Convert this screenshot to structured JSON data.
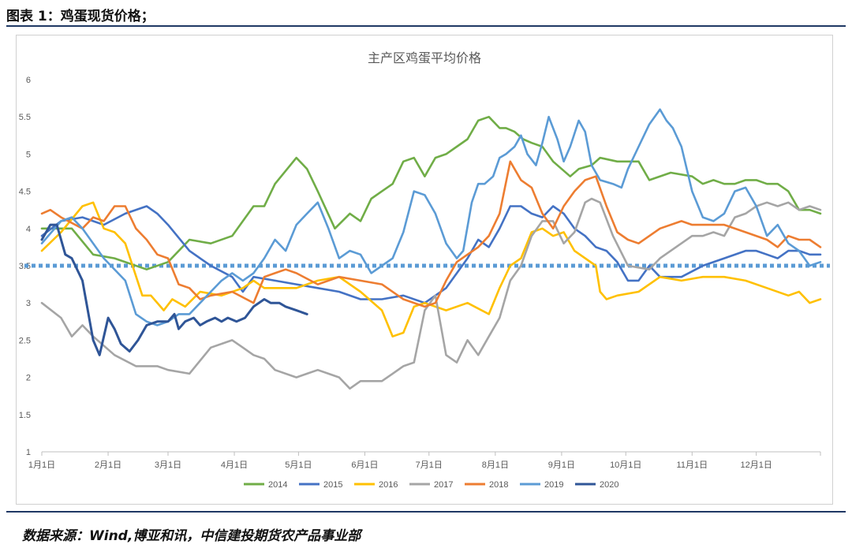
{
  "figure_caption": "图表 1：鸡蛋现货价格；",
  "source_note": "数据来源：Wind,博亚和讯，中信建投期货农产品事业部",
  "chart_data": {
    "type": "line",
    "title": "主产区鸡蛋平均价格",
    "xlabel": "",
    "ylabel": "",
    "ylim": [
      1,
      6
    ],
    "yticks": [
      "1",
      "1.5",
      "2",
      "2.5",
      "3",
      "3.5",
      "4",
      "4.5",
      "5",
      "5.5",
      "6"
    ],
    "xticks": [
      "1月1日",
      "2月1日",
      "3月1日",
      "4月1日",
      "5月1日",
      "6月1日",
      "7月1日",
      "8月1日",
      "9月1日",
      "10月1日",
      "11月1日",
      "12月1日"
    ],
    "x_day_of_year_range": [
      1,
      365
    ],
    "reference_line": {
      "value": 3.5,
      "color": "#5b9bd5",
      "style": "dotted"
    },
    "legend_position": "bottom",
    "series": [
      {
        "name": "2014",
        "color": "#70ad47",
        "x": [
          1,
          15,
          25,
          35,
          50,
          60,
          70,
          80,
          90,
          100,
          105,
          110,
          120,
          125,
          130,
          138,
          145,
          150,
          155,
          160,
          165,
          170,
          175,
          180,
          185,
          190,
          195,
          200,
          205,
          210,
          215,
          218,
          222,
          226,
          230,
          235,
          240,
          248,
          252,
          258,
          262,
          270,
          280,
          285,
          295,
          305,
          310,
          315,
          320,
          325,
          330,
          335,
          340,
          345,
          350,
          355,
          360,
          365
        ],
        "y": [
          4.0,
          4.0,
          3.65,
          3.6,
          3.45,
          3.55,
          3.85,
          3.8,
          3.9,
          4.3,
          4.3,
          4.6,
          4.95,
          4.8,
          4.5,
          4.0,
          4.2,
          4.1,
          4.4,
          4.5,
          4.6,
          4.9,
          4.95,
          4.7,
          4.95,
          5.0,
          5.1,
          5.2,
          5.45,
          5.5,
          5.35,
          5.35,
          5.3,
          5.2,
          5.15,
          5.1,
          4.9,
          4.7,
          4.8,
          4.85,
          4.95,
          4.9,
          4.9,
          4.65,
          4.75,
          4.7,
          4.6,
          4.65,
          4.6,
          4.6,
          4.65,
          4.65,
          4.6,
          4.6,
          4.5,
          4.25,
          4.25,
          4.2
        ]
      },
      {
        "name": "2015",
        "color": "#4472c4",
        "x": [
          1,
          10,
          20,
          30,
          40,
          50,
          55,
          60,
          70,
          80,
          90,
          95,
          100,
          110,
          120,
          130,
          140,
          150,
          160,
          170,
          180,
          190,
          200,
          205,
          210,
          215,
          220,
          225,
          230,
          235,
          240,
          245,
          250,
          255,
          260,
          265,
          270,
          275,
          280,
          285,
          290,
          300,
          310,
          320,
          330,
          335,
          340,
          345,
          350,
          355,
          360,
          365
        ],
        "y": [
          3.9,
          4.1,
          4.15,
          4.05,
          4.2,
          4.3,
          4.2,
          4.05,
          3.7,
          3.5,
          3.35,
          3.15,
          3.35,
          3.3,
          3.25,
          3.2,
          3.15,
          3.05,
          3.05,
          3.1,
          3.0,
          3.2,
          3.6,
          3.85,
          3.75,
          4.0,
          4.3,
          4.3,
          4.2,
          4.15,
          4.3,
          4.2,
          4.0,
          3.9,
          3.75,
          3.7,
          3.55,
          3.3,
          3.3,
          3.5,
          3.35,
          3.35,
          3.5,
          3.6,
          3.7,
          3.7,
          3.65,
          3.6,
          3.7,
          3.7,
          3.65,
          3.65
        ]
      },
      {
        "name": "2016",
        "color": "#ffc000",
        "x": [
          1,
          10,
          20,
          25,
          30,
          35,
          40,
          48,
          52,
          58,
          62,
          68,
          75,
          85,
          95,
          100,
          105,
          110,
          120,
          130,
          140,
          150,
          160,
          165,
          170,
          175,
          180,
          190,
          200,
          210,
          215,
          220,
          225,
          230,
          235,
          240,
          245,
          250,
          260,
          262,
          265,
          270,
          280,
          290,
          300,
          310,
          320,
          330,
          340,
          350,
          355,
          360,
          365
        ],
        "y": [
          3.7,
          3.95,
          4.3,
          4.35,
          4.0,
          3.95,
          3.8,
          3.1,
          3.1,
          2.9,
          3.05,
          2.95,
          3.15,
          3.1,
          3.2,
          3.3,
          3.2,
          3.2,
          3.2,
          3.3,
          3.35,
          3.15,
          2.9,
          2.55,
          2.6,
          2.95,
          3.0,
          2.9,
          3.0,
          2.85,
          3.2,
          3.5,
          3.6,
          3.95,
          4.0,
          3.9,
          3.95,
          3.7,
          3.5,
          3.15,
          3.05,
          3.1,
          3.15,
          3.35,
          3.3,
          3.35,
          3.35,
          3.3,
          3.2,
          3.1,
          3.15,
          3.0,
          3.05
        ]
      },
      {
        "name": "2017",
        "color": "#a5a5a5",
        "x": [
          1,
          10,
          15,
          20,
          25,
          35,
          45,
          55,
          60,
          70,
          80,
          90,
          95,
          100,
          105,
          110,
          120,
          125,
          130,
          135,
          140,
          145,
          150,
          155,
          160,
          165,
          170,
          175,
          180,
          185,
          190,
          195,
          200,
          205,
          210,
          215,
          220,
          225,
          230,
          235,
          240,
          245,
          250,
          255,
          258,
          262,
          268,
          275,
          285,
          290,
          295,
          305,
          310,
          315,
          320,
          325,
          330,
          335,
          340,
          345,
          350,
          355,
          360,
          365
        ],
        "y": [
          3.0,
          2.8,
          2.55,
          2.7,
          2.55,
          2.3,
          2.15,
          2.15,
          2.1,
          2.05,
          2.4,
          2.5,
          2.4,
          2.3,
          2.25,
          2.1,
          2.0,
          2.05,
          2.1,
          2.05,
          2.0,
          1.85,
          1.95,
          1.95,
          1.95,
          2.05,
          2.15,
          2.2,
          2.9,
          3.1,
          2.3,
          2.2,
          2.5,
          2.3,
          2.55,
          2.8,
          3.3,
          3.5,
          3.9,
          4.1,
          4.1,
          3.8,
          3.95,
          4.35,
          4.4,
          4.35,
          3.9,
          3.5,
          3.45,
          3.6,
          3.7,
          3.9,
          3.9,
          3.95,
          3.9,
          4.15,
          4.2,
          4.3,
          4.35,
          4.3,
          4.35,
          4.25,
          4.3,
          4.25
        ]
      },
      {
        "name": "2018",
        "color": "#ed7d31",
        "x": [
          1,
          5,
          10,
          20,
          25,
          30,
          35,
          40,
          45,
          50,
          55,
          60,
          65,
          70,
          75,
          80,
          90,
          100,
          105,
          110,
          115,
          120,
          130,
          140,
          150,
          160,
          170,
          180,
          185,
          190,
          195,
          200,
          205,
          210,
          215,
          220,
          225,
          230,
          235,
          240,
          245,
          250,
          255,
          260,
          265,
          270,
          275,
          280,
          290,
          300,
          305,
          310,
          320,
          330,
          340,
          345,
          350,
          355,
          360,
          365
        ],
        "y": [
          4.2,
          4.25,
          4.15,
          4.0,
          4.15,
          4.1,
          4.3,
          4.3,
          4.0,
          3.85,
          3.65,
          3.6,
          3.25,
          3.2,
          3.05,
          3.1,
          3.15,
          3.0,
          3.35,
          3.4,
          3.45,
          3.4,
          3.25,
          3.35,
          3.3,
          3.25,
          3.05,
          2.95,
          3.0,
          3.3,
          3.55,
          3.65,
          3.75,
          3.9,
          4.2,
          4.9,
          4.65,
          4.55,
          4.2,
          4.0,
          4.3,
          4.5,
          4.65,
          4.7,
          4.3,
          3.95,
          3.85,
          3.8,
          4.0,
          4.1,
          4.05,
          4.05,
          4.05,
          3.95,
          3.85,
          3.75,
          3.9,
          3.85,
          3.85,
          3.75
        ]
      },
      {
        "name": "2019",
        "color": "#5b9bd5",
        "x": [
          1,
          10,
          15,
          20,
          30,
          40,
          45,
          50,
          55,
          60,
          65,
          70,
          75,
          80,
          85,
          90,
          95,
          100,
          105,
          110,
          115,
          120,
          125,
          130,
          135,
          140,
          145,
          150,
          155,
          160,
          165,
          170,
          175,
          180,
          185,
          190,
          195,
          198,
          202,
          205,
          208,
          212,
          215,
          218,
          222,
          225,
          228,
          232,
          235,
          238,
          242,
          245,
          248,
          252,
          255,
          258,
          262,
          268,
          272,
          275,
          280,
          285,
          290,
          293,
          296,
          300,
          305,
          310,
          315,
          320,
          325,
          330,
          335,
          340,
          345,
          350,
          355,
          360,
          365
        ],
        "y": [
          3.8,
          4.1,
          4.15,
          4.0,
          3.6,
          3.3,
          2.85,
          2.75,
          2.7,
          2.75,
          2.85,
          2.85,
          3.0,
          3.15,
          3.3,
          3.4,
          3.3,
          3.4,
          3.6,
          3.85,
          3.7,
          4.05,
          4.2,
          4.35,
          4.0,
          3.6,
          3.7,
          3.65,
          3.4,
          3.5,
          3.6,
          3.95,
          4.5,
          4.45,
          4.2,
          3.8,
          3.6,
          3.7,
          4.35,
          4.6,
          4.6,
          4.7,
          4.95,
          5.0,
          5.1,
          5.25,
          5.0,
          4.85,
          5.15,
          5.5,
          5.2,
          4.9,
          5.1,
          5.45,
          5.3,
          4.85,
          4.65,
          4.6,
          4.55,
          4.8,
          5.1,
          5.4,
          5.6,
          5.45,
          5.35,
          5.1,
          4.5,
          4.15,
          4.1,
          4.2,
          4.5,
          4.55,
          4.3,
          3.9,
          4.05,
          3.8,
          3.7,
          3.5,
          3.55
        ]
      },
      {
        "name": "2020",
        "color": "#2f5597",
        "x": [
          1,
          5,
          8,
          12,
          15,
          20,
          25,
          28,
          32,
          35,
          38,
          42,
          46,
          50,
          55,
          60,
          63,
          65,
          68,
          72,
          75,
          78,
          82,
          85,
          88,
          92,
          96,
          100,
          105,
          108,
          112,
          115,
          120,
          125
        ],
        "y": [
          3.85,
          4.05,
          4.05,
          3.65,
          3.6,
          3.3,
          2.5,
          2.3,
          2.8,
          2.65,
          2.45,
          2.35,
          2.5,
          2.7,
          2.75,
          2.75,
          2.85,
          2.65,
          2.75,
          2.8,
          2.7,
          2.75,
          2.8,
          2.75,
          2.8,
          2.75,
          2.8,
          2.95,
          3.05,
          3.0,
          3.0,
          2.95,
          2.9,
          2.85
        ]
      }
    ]
  }
}
